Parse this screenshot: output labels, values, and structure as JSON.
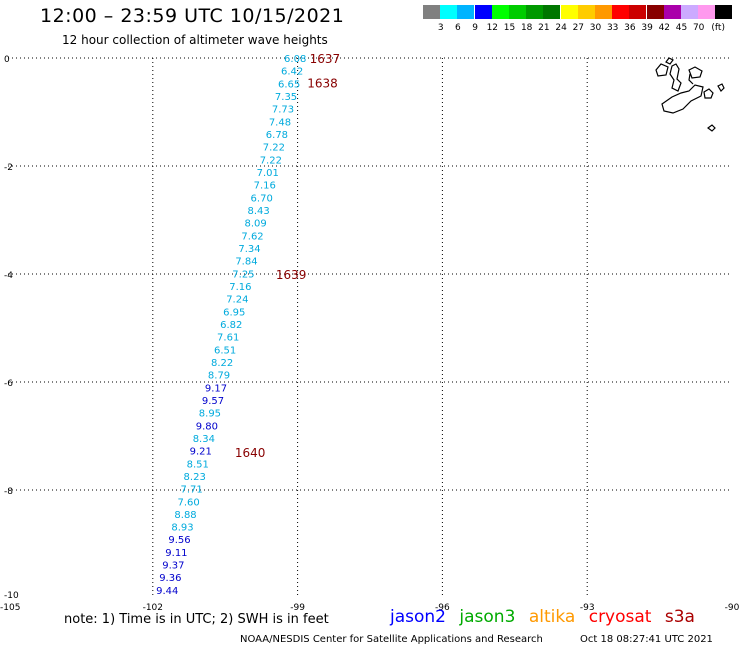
{
  "header": {
    "title": "12:00 – 23:59 UTC 10/15/2021",
    "subtitle": "12 hour collection of altimeter wave heights"
  },
  "color_scale": {
    "unit": "(ft)",
    "swatches": [
      {
        "color": "#808080",
        "label": ""
      },
      {
        "color": "#00ffff",
        "label": "3"
      },
      {
        "color": "#00b4ff",
        "label": "6"
      },
      {
        "color": "#0000ff",
        "label": "9"
      },
      {
        "color": "#00ff00",
        "label": "12"
      },
      {
        "color": "#00cc00",
        "label": "15"
      },
      {
        "color": "#009900",
        "label": "18"
      },
      {
        "color": "#007700",
        "label": "21"
      },
      {
        "color": "#ffff00",
        "label": "24"
      },
      {
        "color": "#ffcc00",
        "label": "27"
      },
      {
        "color": "#ff9900",
        "label": "30"
      },
      {
        "color": "#ff0000",
        "label": "33"
      },
      {
        "color": "#cc0000",
        "label": "36"
      },
      {
        "color": "#880000",
        "label": "39"
      },
      {
        "color": "#aa00aa",
        "label": "42"
      },
      {
        "color": "#ccaaff",
        "label": "45"
      },
      {
        "color": "#ff99ee",
        "label": "70"
      },
      {
        "color": "#000000",
        "label": ""
      }
    ]
  },
  "map": {
    "lat_labels": [
      "0",
      "-2",
      "-4",
      "-6",
      "-8",
      "-10"
    ],
    "lon_labels": [
      "-105",
      "-102",
      "-99",
      "-96",
      "-93",
      "-90"
    ],
    "lat_range": [
      -10,
      0
    ],
    "lon_range": [
      -105,
      -90
    ],
    "time_labels": [
      {
        "text": "1637",
        "lon": -98.75,
        "lat": 0.0
      },
      {
        "text": "1638",
        "lon": -98.8,
        "lat": -0.45
      },
      {
        "text": "1639",
        "lon": -99.45,
        "lat": -4.0
      },
      {
        "text": "1640",
        "lon": -100.3,
        "lat": -7.3
      }
    ],
    "wave_heights": [
      {
        "v": "6.08",
        "c": "#00aadd"
      },
      {
        "v": "6.42",
        "c": "#00aadd"
      },
      {
        "v": "6.65",
        "c": "#00aadd"
      },
      {
        "v": "7.35",
        "c": "#00aadd"
      },
      {
        "v": "7.73",
        "c": "#00aadd"
      },
      {
        "v": "7.48",
        "c": "#00aadd"
      },
      {
        "v": "6.78",
        "c": "#00aadd"
      },
      {
        "v": "7.22",
        "c": "#00aadd"
      },
      {
        "v": "7.22",
        "c": "#00aadd"
      },
      {
        "v": "7.01",
        "c": "#00aadd"
      },
      {
        "v": "7.16",
        "c": "#00aadd"
      },
      {
        "v": "6.70",
        "c": "#00aadd"
      },
      {
        "v": "8.43",
        "c": "#00aadd"
      },
      {
        "v": "8.09",
        "c": "#00aadd"
      },
      {
        "v": "7.62",
        "c": "#00aadd"
      },
      {
        "v": "7.34",
        "c": "#00aadd"
      },
      {
        "v": "7.84",
        "c": "#00aadd"
      },
      {
        "v": "7.25",
        "c": "#00aadd"
      },
      {
        "v": "7.16",
        "c": "#00aadd"
      },
      {
        "v": "7.24",
        "c": "#00aadd"
      },
      {
        "v": "6.95",
        "c": "#00aadd"
      },
      {
        "v": "6.82",
        "c": "#00aadd"
      },
      {
        "v": "7.61",
        "c": "#00aadd"
      },
      {
        "v": "6.51",
        "c": "#00aadd"
      },
      {
        "v": "8.22",
        "c": "#00aadd"
      },
      {
        "v": "8.79",
        "c": "#00aadd"
      },
      {
        "v": "9.17",
        "c": "#0000cc"
      },
      {
        "v": "9.57",
        "c": "#0000cc"
      },
      {
        "v": "8.95",
        "c": "#00aadd"
      },
      {
        "v": "9.80",
        "c": "#0000cc"
      },
      {
        "v": "8.34",
        "c": "#00aadd"
      },
      {
        "v": "9.21",
        "c": "#0000cc"
      },
      {
        "v": "8.51",
        "c": "#00aadd"
      },
      {
        "v": "8.23",
        "c": "#00aadd"
      },
      {
        "v": "7.71",
        "c": "#00aadd"
      },
      {
        "v": "7.60",
        "c": "#00aadd"
      },
      {
        "v": "8.88",
        "c": "#00aadd"
      },
      {
        "v": "8.93",
        "c": "#00aadd"
      },
      {
        "v": "9.56",
        "c": "#0000cc"
      },
      {
        "v": "9.11",
        "c": "#0000cc"
      },
      {
        "v": "9.37",
        "c": "#0000cc"
      },
      {
        "v": "9.36",
        "c": "#0000cc"
      },
      {
        "v": "9.44",
        "c": "#0000cc"
      }
    ]
  },
  "footer": {
    "note": "note: 1) Time is in UTC; 2) SWH is in feet",
    "satellites": [
      {
        "name": "jason2",
        "color": "#0000ff"
      },
      {
        "name": "jason3",
        "color": "#00aa00"
      },
      {
        "name": "altika",
        "color": "#ff9900"
      },
      {
        "name": "cryosat",
        "color": "#ff0000"
      },
      {
        "name": "s3a",
        "color": "#aa0000"
      }
    ],
    "credit": "NOAA/NESDIS Center for Satellite Applications and Research",
    "timestamp": "Oct 18 08:27:41 UTC 2021"
  }
}
